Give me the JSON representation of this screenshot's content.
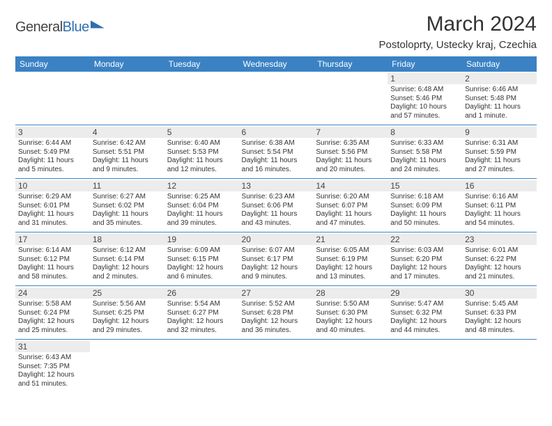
{
  "brand": {
    "name_a": "General",
    "name_b": "Blue"
  },
  "title": "March 2024",
  "location": "Postoloprty, Ustecky kraj, Czechia",
  "colors": {
    "header_bg": "#3b82c4",
    "header_text": "#ffffff",
    "daybar_bg": "#ececec",
    "border": "#3b82c4",
    "text": "#333333",
    "brand_blue": "#2f6fb0"
  },
  "weekdays": [
    "Sunday",
    "Monday",
    "Tuesday",
    "Wednesday",
    "Thursday",
    "Friday",
    "Saturday"
  ],
  "weeks": [
    [
      null,
      null,
      null,
      null,
      null,
      {
        "n": "1",
        "sunrise": "Sunrise: 6:48 AM",
        "sunset": "Sunset: 5:46 PM",
        "day": "Daylight: 10 hours and 57 minutes."
      },
      {
        "n": "2",
        "sunrise": "Sunrise: 6:46 AM",
        "sunset": "Sunset: 5:48 PM",
        "day": "Daylight: 11 hours and 1 minute."
      }
    ],
    [
      {
        "n": "3",
        "sunrise": "Sunrise: 6:44 AM",
        "sunset": "Sunset: 5:49 PM",
        "day": "Daylight: 11 hours and 5 minutes."
      },
      {
        "n": "4",
        "sunrise": "Sunrise: 6:42 AM",
        "sunset": "Sunset: 5:51 PM",
        "day": "Daylight: 11 hours and 9 minutes."
      },
      {
        "n": "5",
        "sunrise": "Sunrise: 6:40 AM",
        "sunset": "Sunset: 5:53 PM",
        "day": "Daylight: 11 hours and 12 minutes."
      },
      {
        "n": "6",
        "sunrise": "Sunrise: 6:38 AM",
        "sunset": "Sunset: 5:54 PM",
        "day": "Daylight: 11 hours and 16 minutes."
      },
      {
        "n": "7",
        "sunrise": "Sunrise: 6:35 AM",
        "sunset": "Sunset: 5:56 PM",
        "day": "Daylight: 11 hours and 20 minutes."
      },
      {
        "n": "8",
        "sunrise": "Sunrise: 6:33 AM",
        "sunset": "Sunset: 5:58 PM",
        "day": "Daylight: 11 hours and 24 minutes."
      },
      {
        "n": "9",
        "sunrise": "Sunrise: 6:31 AM",
        "sunset": "Sunset: 5:59 PM",
        "day": "Daylight: 11 hours and 27 minutes."
      }
    ],
    [
      {
        "n": "10",
        "sunrise": "Sunrise: 6:29 AM",
        "sunset": "Sunset: 6:01 PM",
        "day": "Daylight: 11 hours and 31 minutes."
      },
      {
        "n": "11",
        "sunrise": "Sunrise: 6:27 AM",
        "sunset": "Sunset: 6:02 PM",
        "day": "Daylight: 11 hours and 35 minutes."
      },
      {
        "n": "12",
        "sunrise": "Sunrise: 6:25 AM",
        "sunset": "Sunset: 6:04 PM",
        "day": "Daylight: 11 hours and 39 minutes."
      },
      {
        "n": "13",
        "sunrise": "Sunrise: 6:23 AM",
        "sunset": "Sunset: 6:06 PM",
        "day": "Daylight: 11 hours and 43 minutes."
      },
      {
        "n": "14",
        "sunrise": "Sunrise: 6:20 AM",
        "sunset": "Sunset: 6:07 PM",
        "day": "Daylight: 11 hours and 47 minutes."
      },
      {
        "n": "15",
        "sunrise": "Sunrise: 6:18 AM",
        "sunset": "Sunset: 6:09 PM",
        "day": "Daylight: 11 hours and 50 minutes."
      },
      {
        "n": "16",
        "sunrise": "Sunrise: 6:16 AM",
        "sunset": "Sunset: 6:11 PM",
        "day": "Daylight: 11 hours and 54 minutes."
      }
    ],
    [
      {
        "n": "17",
        "sunrise": "Sunrise: 6:14 AM",
        "sunset": "Sunset: 6:12 PM",
        "day": "Daylight: 11 hours and 58 minutes."
      },
      {
        "n": "18",
        "sunrise": "Sunrise: 6:12 AM",
        "sunset": "Sunset: 6:14 PM",
        "day": "Daylight: 12 hours and 2 minutes."
      },
      {
        "n": "19",
        "sunrise": "Sunrise: 6:09 AM",
        "sunset": "Sunset: 6:15 PM",
        "day": "Daylight: 12 hours and 6 minutes."
      },
      {
        "n": "20",
        "sunrise": "Sunrise: 6:07 AM",
        "sunset": "Sunset: 6:17 PM",
        "day": "Daylight: 12 hours and 9 minutes."
      },
      {
        "n": "21",
        "sunrise": "Sunrise: 6:05 AM",
        "sunset": "Sunset: 6:19 PM",
        "day": "Daylight: 12 hours and 13 minutes."
      },
      {
        "n": "22",
        "sunrise": "Sunrise: 6:03 AM",
        "sunset": "Sunset: 6:20 PM",
        "day": "Daylight: 12 hours and 17 minutes."
      },
      {
        "n": "23",
        "sunrise": "Sunrise: 6:01 AM",
        "sunset": "Sunset: 6:22 PM",
        "day": "Daylight: 12 hours and 21 minutes."
      }
    ],
    [
      {
        "n": "24",
        "sunrise": "Sunrise: 5:58 AM",
        "sunset": "Sunset: 6:24 PM",
        "day": "Daylight: 12 hours and 25 minutes."
      },
      {
        "n": "25",
        "sunrise": "Sunrise: 5:56 AM",
        "sunset": "Sunset: 6:25 PM",
        "day": "Daylight: 12 hours and 29 minutes."
      },
      {
        "n": "26",
        "sunrise": "Sunrise: 5:54 AM",
        "sunset": "Sunset: 6:27 PM",
        "day": "Daylight: 12 hours and 32 minutes."
      },
      {
        "n": "27",
        "sunrise": "Sunrise: 5:52 AM",
        "sunset": "Sunset: 6:28 PM",
        "day": "Daylight: 12 hours and 36 minutes."
      },
      {
        "n": "28",
        "sunrise": "Sunrise: 5:50 AM",
        "sunset": "Sunset: 6:30 PM",
        "day": "Daylight: 12 hours and 40 minutes."
      },
      {
        "n": "29",
        "sunrise": "Sunrise: 5:47 AM",
        "sunset": "Sunset: 6:32 PM",
        "day": "Daylight: 12 hours and 44 minutes."
      },
      {
        "n": "30",
        "sunrise": "Sunrise: 5:45 AM",
        "sunset": "Sunset: 6:33 PM",
        "day": "Daylight: 12 hours and 48 minutes."
      }
    ],
    [
      {
        "n": "31",
        "sunrise": "Sunrise: 6:43 AM",
        "sunset": "Sunset: 7:35 PM",
        "day": "Daylight: 12 hours and 51 minutes."
      },
      null,
      null,
      null,
      null,
      null,
      null
    ]
  ]
}
